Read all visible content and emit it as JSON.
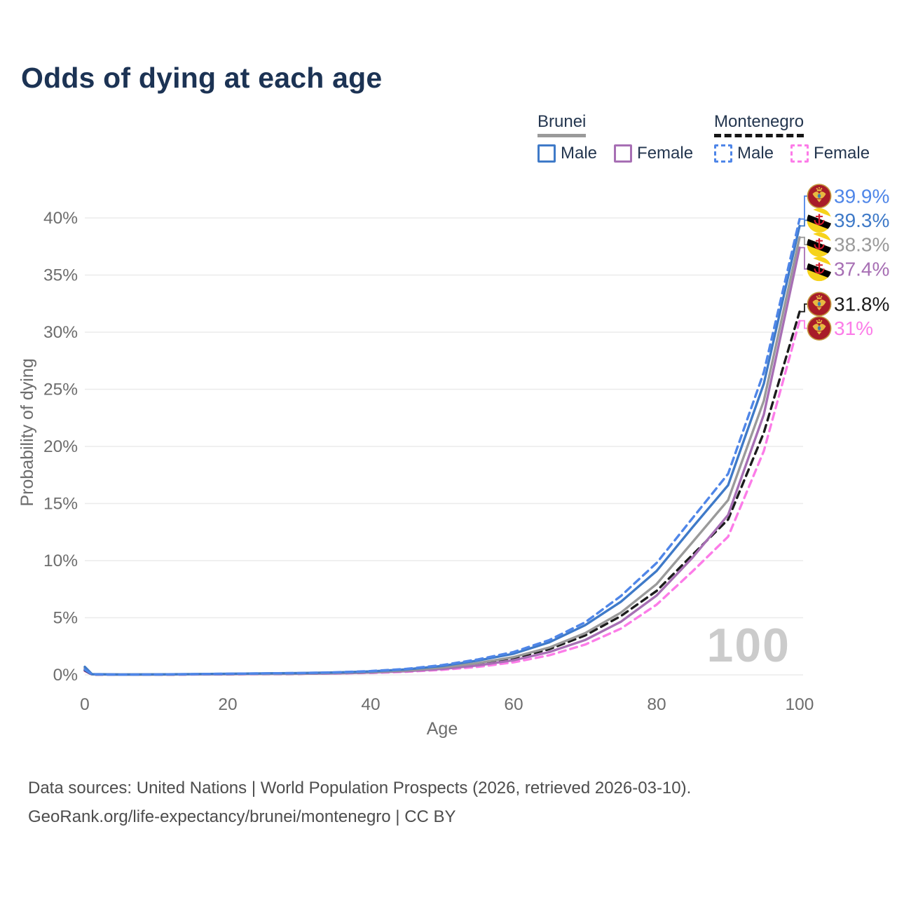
{
  "title": "Odds of dying at each age",
  "legend": {
    "groups": [
      {
        "name": "Brunei",
        "line_style": "solid",
        "line_color": "#9a9a9a",
        "items": [
          {
            "label": "Male",
            "color": "#3f7ac8",
            "dashed": false
          },
          {
            "label": "Female",
            "color": "#a76fb4",
            "dashed": false
          }
        ]
      },
      {
        "name": "Montenegro",
        "line_style": "dashed",
        "line_color": "#161616",
        "items": [
          {
            "label": "Male",
            "color": "#4f86e8",
            "dashed": true
          },
          {
            "label": "Female",
            "color": "#fc7ce8",
            "dashed": true
          }
        ]
      }
    ]
  },
  "chart_data": {
    "type": "line",
    "title": "Odds of dying at each age",
    "xlabel": "Age",
    "ylabel": "Probability of dying",
    "xlim": [
      0,
      100
    ],
    "ylim_pct": [
      0,
      40
    ],
    "x_ticks": [
      0,
      20,
      40,
      60,
      80,
      100
    ],
    "y_ticks_pct": [
      0,
      5,
      10,
      15,
      20,
      25,
      30,
      35,
      40
    ],
    "grid": true,
    "legend_position": "top-right",
    "watermark": "100",
    "ages": [
      0,
      1,
      5,
      10,
      15,
      20,
      25,
      30,
      35,
      40,
      45,
      50,
      55,
      60,
      65,
      70,
      75,
      80,
      85,
      90,
      95,
      100
    ],
    "series": [
      {
        "name": "Montenegro Female",
        "country": "montenegro",
        "sex": "female",
        "color": "#fc7ce8",
        "dashed": true,
        "end_label": "31%",
        "values_pct": [
          0.35,
          0.03,
          0.02,
          0.02,
          0.03,
          0.05,
          0.07,
          0.09,
          0.12,
          0.17,
          0.27,
          0.44,
          0.7,
          1.1,
          1.72,
          2.65,
          4.05,
          6.15,
          9.05,
          12.1,
          19.6,
          31.0
        ]
      },
      {
        "name": "Montenegro",
        "country": "montenegro",
        "sex": "all",
        "color": "#1c1c1c",
        "dashed": true,
        "end_label": "31.8%",
        "values_pct": [
          0.4,
          0.03,
          0.02,
          0.02,
          0.04,
          0.06,
          0.08,
          0.1,
          0.14,
          0.21,
          0.34,
          0.57,
          0.92,
          1.45,
          2.25,
          3.45,
          5.15,
          7.35,
          10.5,
          13.6,
          21.2,
          31.8
        ]
      },
      {
        "name": "Brunei Female",
        "country": "brunei",
        "sex": "female",
        "color": "#a76fb4",
        "dashed": false,
        "end_label": "37.4%",
        "values_pct": [
          0.5,
          0.04,
          0.02,
          0.03,
          0.04,
          0.06,
          0.08,
          0.1,
          0.13,
          0.2,
          0.32,
          0.52,
          0.82,
          1.28,
          2.0,
          3.05,
          4.65,
          6.95,
          10.25,
          14.0,
          22.8,
          37.4
        ]
      },
      {
        "name": "Brunei",
        "country": "brunei",
        "sex": "all",
        "color": "#9a9a9a",
        "dashed": false,
        "end_label": "38.3%",
        "values_pct": [
          0.6,
          0.05,
          0.03,
          0.03,
          0.05,
          0.08,
          0.1,
          0.12,
          0.17,
          0.25,
          0.4,
          0.65,
          1.03,
          1.55,
          2.4,
          3.65,
          5.45,
          7.95,
          11.6,
          15.3,
          24.0,
          38.3
        ]
      },
      {
        "name": "Brunei Male",
        "country": "brunei",
        "sex": "male",
        "color": "#3f7ac8",
        "dashed": false,
        "end_label": "39.3%",
        "values_pct": [
          0.7,
          0.06,
          0.03,
          0.04,
          0.07,
          0.1,
          0.13,
          0.16,
          0.21,
          0.3,
          0.48,
          0.78,
          1.25,
          1.85,
          2.85,
          4.35,
          6.4,
          9.1,
          12.9,
          16.6,
          25.5,
          39.3
        ]
      },
      {
        "name": "Montenegro Male",
        "country": "montenegro",
        "sex": "male",
        "color": "#4f86e8",
        "dashed": true,
        "end_label": "39.9%",
        "values_pct": [
          0.45,
          0.04,
          0.02,
          0.03,
          0.06,
          0.1,
          0.13,
          0.16,
          0.22,
          0.33,
          0.52,
          0.85,
          1.35,
          2.0,
          3.05,
          4.6,
          6.9,
          9.8,
          13.7,
          17.6,
          26.5,
          39.9
        ]
      }
    ]
  },
  "footer": {
    "line1": "Data sources: United Nations | World Population Prospects (2026, retrieved 2026-03-10).",
    "line2": "GeoRank.org/life-expectancy/brunei/montenegro | CC BY"
  }
}
